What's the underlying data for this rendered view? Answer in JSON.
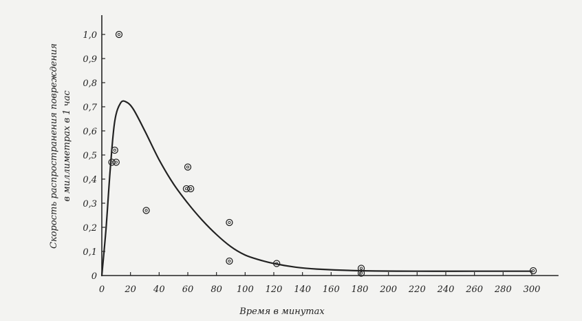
{
  "chart_data": {
    "type": "scatter",
    "title": "",
    "xlabel": "Время в минутах",
    "ylabel": "Скорость распространения повреждения в миллиметрах в 1 час",
    "ylabel_lines": [
      "Скорость распространения повреждения",
      "в миллиметрах в 1 час"
    ],
    "xlim": [
      0,
      310
    ],
    "ylim": [
      0,
      1.08
    ],
    "x_ticks": [
      0,
      20,
      40,
      60,
      80,
      100,
      120,
      140,
      160,
      180,
      200,
      220,
      240,
      260,
      280,
      300
    ],
    "x_tick_labels": [
      "0",
      "20",
      "40",
      "60",
      "80",
      "100",
      "120",
      "140",
      "160",
      "180",
      "200",
      "220",
      "240",
      "260",
      "280",
      "300"
    ],
    "y_ticks": [
      0.1,
      0.2,
      0.3,
      0.4,
      0.5,
      0.6,
      0.7,
      0.8,
      0.9,
      1.0
    ],
    "y_tick_labels": [
      "0,1",
      "0,2",
      "0,3",
      "0,4",
      "0,5",
      "0,6",
      "0,7",
      "0,8",
      "0,9",
      "1,0"
    ],
    "origin_label": "0",
    "grid": false,
    "points": [
      {
        "x": 12,
        "y": 1.0
      },
      {
        "x": 7,
        "y": 0.47
      },
      {
        "x": 10,
        "y": 0.47
      },
      {
        "x": 9,
        "y": 0.52
      },
      {
        "x": 31,
        "y": 0.27
      },
      {
        "x": 60,
        "y": 0.45
      },
      {
        "x": 59,
        "y": 0.36
      },
      {
        "x": 62,
        "y": 0.36
      },
      {
        "x": 89,
        "y": 0.22
      },
      {
        "x": 89,
        "y": 0.06
      },
      {
        "x": 122,
        "y": 0.05
      },
      {
        "x": 181,
        "y": 0.03
      },
      {
        "x": 181,
        "y": 0.01
      },
      {
        "x": 301,
        "y": 0.02
      }
    ],
    "curve": [
      {
        "x": 0,
        "y": 0
      },
      {
        "x": 3,
        "y": 0.2
      },
      {
        "x": 6,
        "y": 0.45
      },
      {
        "x": 9,
        "y": 0.64
      },
      {
        "x": 13,
        "y": 0.715
      },
      {
        "x": 17,
        "y": 0.72
      },
      {
        "x": 22,
        "y": 0.69
      },
      {
        "x": 30,
        "y": 0.6
      },
      {
        "x": 40,
        "y": 0.48
      },
      {
        "x": 50,
        "y": 0.38
      },
      {
        "x": 60,
        "y": 0.3
      },
      {
        "x": 70,
        "y": 0.23
      },
      {
        "x": 80,
        "y": 0.17
      },
      {
        "x": 90,
        "y": 0.12
      },
      {
        "x": 100,
        "y": 0.085
      },
      {
        "x": 110,
        "y": 0.065
      },
      {
        "x": 120,
        "y": 0.05
      },
      {
        "x": 135,
        "y": 0.035
      },
      {
        "x": 150,
        "y": 0.027
      },
      {
        "x": 180,
        "y": 0.02
      },
      {
        "x": 220,
        "y": 0.018
      },
      {
        "x": 260,
        "y": 0.018
      },
      {
        "x": 300,
        "y": 0.018
      }
    ],
    "colors": {
      "ink": "#222222",
      "paper": "#f3f3f1"
    }
  }
}
